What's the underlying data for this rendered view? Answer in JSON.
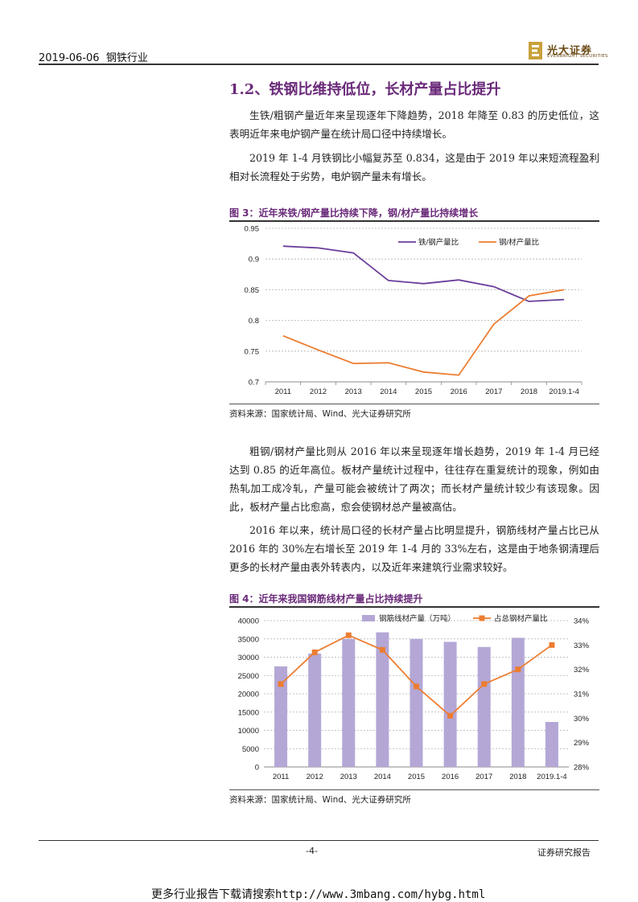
{
  "header": {
    "date": "2019-06-06",
    "industry": "钢铁行业",
    "logo_cn": "光大证券",
    "logo_en": "EVERBRIGHT SECURITIES"
  },
  "section": {
    "title": "1.2、铁钢比维持低位，长材产量占比提升",
    "paragraphs": [
      "生铁/粗钢产量近年来呈现逐年下降趋势，2018 年降至 0.83 的历史低位，这表明近年来电炉钢产量在统计局口径中持续增长。",
      "2019 年 1-4 月铁钢比小幅复苏至 0.834，这是由于 2019 年以来短流程盈利相对长流程处于劣势，电炉钢产量未有增长。"
    ]
  },
  "figure3": {
    "title": "图 3：近年来铁/钢产量比持续下降，钢/材产量比持续增长",
    "source": "资料来源：国家统计局、Wind、光大证券研究所"
  },
  "middle_text": {
    "paragraphs": [
      "粗钢/钢材产量比则从 2016 年以来呈现逐年增长趋势，2019 年 1-4 月已经达到 0.85 的近年高位。板材产量统计过程中，往往存在重复统计的现象，例如由热轧加工成冷轧，产量可能会被统计了两次；而长材产量统计较少有该现象。因此，板材产量占比愈高，愈会使钢材总产量被高估。",
      "2016 年以来，统计局口径的长材产量占比明显提升，钢筋线材产量占比已从 2016 年的 30%左右增长至 2019 年 1-4 月的 33%左右，这是由于地条钢清理后更多的长材产量由表外转表内，以及近年来建筑行业需求较好。"
    ]
  },
  "figure4": {
    "title": "图 4：近年来我国钢筋线材产量占比持续提升",
    "source": "资料来源：国家统计局、Wind、光大证券研究所"
  },
  "footer": {
    "page": "-4-",
    "report_type": "证券研究报告",
    "promo": "更多行业报告下载请搜索http://www.3mbang.com/hybg.html"
  },
  "chart_data": [
    {
      "type": "line",
      "categories": [
        "2011",
        "2012",
        "2013",
        "2014",
        "2015",
        "2016",
        "2017",
        "2018",
        "2019.1-4"
      ],
      "series": [
        {
          "name": "铁/钢产量比",
          "color": "#6a3d9a",
          "values": [
            0.921,
            0.918,
            0.91,
            0.865,
            0.86,
            0.866,
            0.855,
            0.831,
            0.834
          ]
        },
        {
          "name": "钢/材产量比",
          "color": "#ed7d31",
          "values": [
            0.775,
            0.752,
            0.73,
            0.731,
            0.716,
            0.711,
            0.794,
            0.84,
            0.85
          ]
        }
      ],
      "ylim": [
        0.7,
        0.95
      ],
      "yticks": [
        "0.95",
        "0.9",
        "0.85",
        "0.8",
        "0.75",
        "0.7"
      ],
      "grid": true,
      "legend": "top-right"
    },
    {
      "type": "bar",
      "categories": [
        "2011",
        "2012",
        "2013",
        "2014",
        "2015",
        "2016",
        "2017",
        "2018",
        "2019.1-4"
      ],
      "series": [
        {
          "name": "钢筋线材产量（万吨）",
          "kind": "bar",
          "axis": "left",
          "color": "#b4a7d6",
          "values": [
            27500,
            31000,
            35000,
            36800,
            35000,
            34200,
            32800,
            35300,
            12300
          ]
        },
        {
          "name": "占总钢材产量比",
          "kind": "line",
          "axis": "right",
          "color": "#ed7d31",
          "values": [
            31.4,
            32.7,
            33.4,
            32.8,
            31.3,
            30.1,
            31.4,
            32.0,
            33.0
          ]
        }
      ],
      "ylim_left": [
        0,
        40000
      ],
      "yticks_left": [
        "40000",
        "35000",
        "30000",
        "25000",
        "20000",
        "15000",
        "10000",
        "5000",
        "0"
      ],
      "ylim_right": [
        28,
        34
      ],
      "yticks_right": [
        "34%",
        "33%",
        "32%",
        "31%",
        "30%",
        "29%",
        "28%"
      ],
      "grid": true,
      "legend": "top"
    }
  ]
}
